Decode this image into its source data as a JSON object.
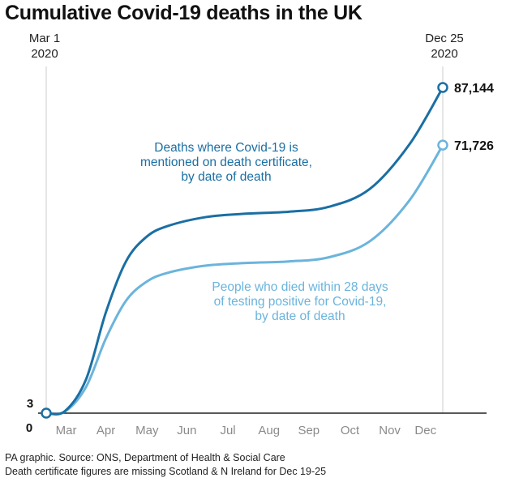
{
  "title": "Cumulative Covid-19 deaths in the UK",
  "footnotes": [
    "PA graphic. Source: ONS, Department of Health & Social Care",
    "Death certificate figures are missing Scotland & N Ireland for Dec 19-25"
  ],
  "start_label": {
    "line1": "Mar 1",
    "line2": "2020"
  },
  "end_label": {
    "line1": "Dec 25",
    "line2": "2020"
  },
  "colors": {
    "series_cert": "#1a6fa3",
    "series_test": "#6bb4dc",
    "axis": "#222222",
    "guide": "#d6d6d6",
    "tick_text": "#8a8a8a",
    "value_text": "#111111"
  },
  "chart_data": {
    "type": "line",
    "title": "Cumulative Covid-19 deaths in the UK",
    "xlabel": "",
    "ylabel": "",
    "x_ticks": [
      "Mar",
      "Apr",
      "May",
      "Jun",
      "Jul",
      "Aug",
      "Sep",
      "Oct",
      "Nov",
      "Dec"
    ],
    "x_range": [
      "2020-03-01",
      "2020-12-25"
    ],
    "ylim": [
      0,
      87144
    ],
    "y_ticks": [
      0
    ],
    "grid": false,
    "start_value": 3,
    "series": [
      {
        "name": "Deaths where Covid-19 is mentioned on death certificate, by date of death",
        "color": "#1a6fa3",
        "points": [
          [
            "2020-03-01",
            3
          ],
          [
            "2020-03-15",
            500
          ],
          [
            "2020-03-31",
            9000
          ],
          [
            "2020-04-15",
            27000
          ],
          [
            "2020-04-30",
            40500
          ],
          [
            "2020-05-15",
            47000
          ],
          [
            "2020-05-31",
            50000
          ],
          [
            "2020-06-30",
            52500
          ],
          [
            "2020-07-31",
            53400
          ],
          [
            "2020-08-31",
            53900
          ],
          [
            "2020-09-30",
            55200
          ],
          [
            "2020-10-31",
            60000
          ],
          [
            "2020-11-30",
            72000
          ],
          [
            "2020-12-25",
            87144
          ]
        ],
        "end_label": "87,144"
      },
      {
        "name": "People who died within 28 days of testing positive for Covid-19, by date of death",
        "color": "#6bb4dc",
        "points": [
          [
            "2020-03-01",
            3
          ],
          [
            "2020-03-15",
            400
          ],
          [
            "2020-03-31",
            7000
          ],
          [
            "2020-04-15",
            20000
          ],
          [
            "2020-04-30",
            30000
          ],
          [
            "2020-05-15",
            35000
          ],
          [
            "2020-05-31",
            37500
          ],
          [
            "2020-06-30",
            39500
          ],
          [
            "2020-07-31",
            40200
          ],
          [
            "2020-08-31",
            40600
          ],
          [
            "2020-09-30",
            41700
          ],
          [
            "2020-10-31",
            46000
          ],
          [
            "2020-11-30",
            57000
          ],
          [
            "2020-12-25",
            71726
          ]
        ],
        "end_label": "71,726"
      }
    ]
  }
}
